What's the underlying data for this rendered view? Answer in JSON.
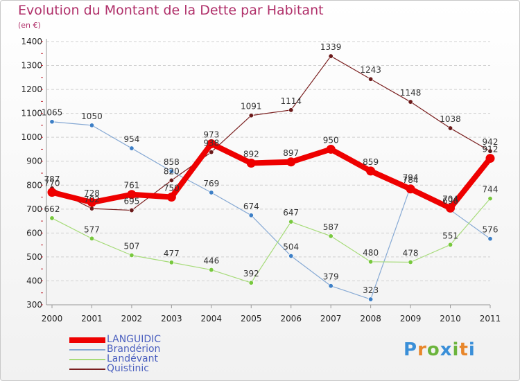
{
  "title": "Evolution du Montant de la Dette par Habitant",
  "subtitle": "(en €)",
  "logo": {
    "text": "Proxiti",
    "colors": [
      "#3a8fd8",
      "#e8862a",
      "#6bb43c",
      "#3a8fd8",
      "#6bb43c",
      "#e8862a",
      "#3a8fd8"
    ]
  },
  "chart_data": {
    "type": "line",
    "x": [
      "2000",
      "2001",
      "2002",
      "2003",
      "2004",
      "2005",
      "2006",
      "2007",
      "2008",
      "2009",
      "2010",
      "2011"
    ],
    "ylim": [
      300,
      1400
    ],
    "yticks": [
      "300",
      "400",
      "500",
      "600",
      "700",
      "800",
      "900",
      "1000",
      "1100",
      "1200",
      "1300",
      "1400"
    ],
    "grid": "horizontal dashed",
    "legend_position": "bottom-left",
    "series": [
      {
        "name": "Quistinic",
        "color": "#7a1f1f",
        "marker": "#6b1a1a",
        "width": 1.2,
        "values": [
          787,
          702,
          695,
          820,
          938,
          1091,
          1114,
          1339,
          1243,
          1148,
          1038,
          942
        ]
      },
      {
        "name": "Brandérion",
        "color": "#86a9d4",
        "marker": "#3d7fc6",
        "width": 1.2,
        "values": [
          1065,
          1050,
          954,
          858,
          769,
          674,
          504,
          379,
          323,
          794,
          696,
          576
        ]
      },
      {
        "name": "Landévant",
        "color": "#a6db79",
        "marker": "#78c83e",
        "width": 1.2,
        "values": [
          662,
          577,
          507,
          477,
          446,
          392,
          647,
          587,
          480,
          478,
          551,
          744
        ]
      },
      {
        "name": "LANGUIDIC",
        "color": "#ee0000",
        "marker": "#ee0000",
        "width": 8,
        "values": [
          770,
          728,
          761,
          750,
          973,
          892,
          897,
          950,
          859,
          784,
          704,
          912
        ]
      }
    ],
    "labels": {
      "Quistinic": [
        "787",
        "702",
        "695",
        "820",
        "938",
        "1091",
        "1114",
        "1339",
        "1243",
        "1148",
        "1038",
        "942"
      ],
      "Brandérion": [
        "1065",
        "1050",
        "954",
        "858",
        "769",
        "674",
        "504",
        "379",
        "323",
        "794",
        "696",
        "576"
      ],
      "Landévant": [
        "662",
        "577",
        "507",
        "477",
        "446",
        "392",
        "647",
        "587",
        "480",
        "478",
        "551",
        "744"
      ],
      "LANGUIDIC": [
        "770",
        "728",
        "761",
        "750",
        "973",
        "892",
        "897",
        "950",
        "859",
        "784",
        "704",
        "912"
      ]
    }
  },
  "legend": [
    {
      "label": "LANGUIDIC",
      "color": "#ee0000",
      "width": 8
    },
    {
      "label": "Brandérion",
      "color": "#86a9d4",
      "width": 2
    },
    {
      "label": "Landévant",
      "color": "#a6db79",
      "width": 2
    },
    {
      "label": "Quistinic",
      "color": "#7a1f1f",
      "width": 2
    }
  ]
}
